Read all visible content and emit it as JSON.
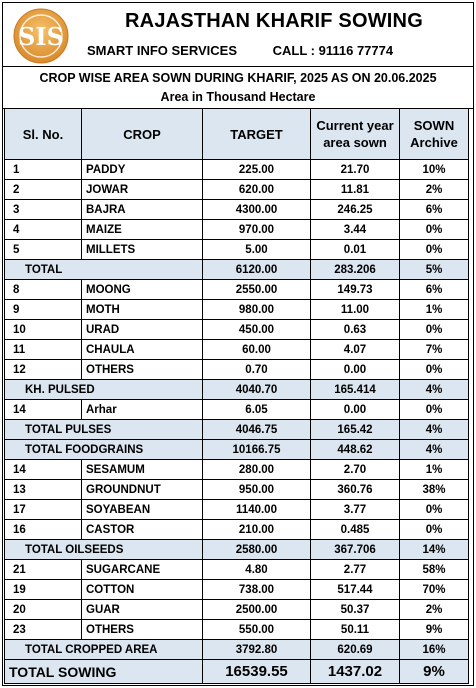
{
  "header": {
    "logo_text": "SIS",
    "title": "RAJASTHAN KHARIF SOWING",
    "company": "SMART INFO SERVICES",
    "call": "CALL : 91116 77774"
  },
  "report": {
    "heading": "CROP WISE AREA SOWN DURING KHARIF, 2025 AS ON 20.06.2025",
    "unit": "Area in Thousand Hectare"
  },
  "table": {
    "columns": [
      "Sl. No.",
      "CROP",
      "TARGET",
      "Current year area sown",
      "SOWN Archive"
    ],
    "rows": [
      {
        "type": "crop",
        "sl": "1",
        "crop": "PADDY",
        "target": "225.00",
        "current": "21.70",
        "archive": "10%"
      },
      {
        "type": "crop",
        "sl": "2",
        "crop": "JOWAR",
        "target": "620.00",
        "current": "11.81",
        "archive": "2%"
      },
      {
        "type": "crop",
        "sl": "3",
        "crop": "BAJRA",
        "target": "4300.00",
        "current": "246.25",
        "archive": "6%"
      },
      {
        "type": "crop",
        "sl": "4",
        "crop": "MAIZE",
        "target": "970.00",
        "current": "3.44",
        "archive": "0%"
      },
      {
        "type": "crop",
        "sl": "5",
        "crop": "MILLETS",
        "target": "5.00",
        "current": "0.01",
        "archive": "0%"
      },
      {
        "type": "total",
        "label": "TOTAL",
        "target": "6120.00",
        "current": "283.206",
        "archive": "5%"
      },
      {
        "type": "crop",
        "sl": "8",
        "crop": "MOONG",
        "target": "2550.00",
        "current": "149.73",
        "archive": "6%"
      },
      {
        "type": "crop",
        "sl": "9",
        "crop": "MOTH",
        "target": "980.00",
        "current": "11.00",
        "archive": "1%"
      },
      {
        "type": "crop",
        "sl": "10",
        "crop": "URAD",
        "target": "450.00",
        "current": "0.63",
        "archive": "0%"
      },
      {
        "type": "crop",
        "sl": "11",
        "crop": "CHAULA",
        "target": "60.00",
        "current": "4.07",
        "archive": "7%"
      },
      {
        "type": "crop",
        "sl": "12",
        "crop": "OTHERS",
        "target": "0.70",
        "current": "0.00",
        "archive": "0%"
      },
      {
        "type": "total",
        "label": "KH. PULSED",
        "target": "4040.70",
        "current": "165.414",
        "archive": "4%"
      },
      {
        "type": "crop",
        "sl": "14",
        "crop": "Arhar",
        "target": "6.05",
        "current": "0.00",
        "archive": "0%"
      },
      {
        "type": "total",
        "label": "TOTAL PULSES",
        "target": "4046.75",
        "current": "165.42",
        "archive": "4%"
      },
      {
        "type": "total",
        "label": "TOTAL  FOODGRAINS",
        "target": "10166.75",
        "current": "448.62",
        "archive": "4%"
      },
      {
        "type": "crop",
        "sl": "14",
        "crop": "SESAMUM",
        "target": "280.00",
        "current": "2.70",
        "archive": "1%"
      },
      {
        "type": "crop",
        "sl": "13",
        "crop": "GROUNDNUT",
        "target": "950.00",
        "current": "360.76",
        "archive": "38%"
      },
      {
        "type": "crop",
        "sl": "17",
        "crop": "SOYABEAN",
        "target": "1140.00",
        "current": "3.77",
        "archive": "0%"
      },
      {
        "type": "crop",
        "sl": "16",
        "crop": "CASTOR",
        "target": "210.00",
        "current": "0.485",
        "archive": "0%"
      },
      {
        "type": "total",
        "label": "TOTAL OILSEEDS",
        "target": "2580.00",
        "current": "367.706",
        "archive": "14%"
      },
      {
        "type": "crop",
        "sl": "21",
        "crop": "SUGARCANE",
        "target": "4.80",
        "current": "2.77",
        "archive": "58%"
      },
      {
        "type": "crop",
        "sl": "19",
        "crop": "COTTON",
        "target": "738.00",
        "current": "517.44",
        "archive": "70%"
      },
      {
        "type": "crop",
        "sl": "20",
        "crop": "GUAR",
        "target": "2500.00",
        "current": "50.37",
        "archive": "2%"
      },
      {
        "type": "crop",
        "sl": "23",
        "crop": "OTHERS",
        "target": "550.00",
        "current": "50.11",
        "archive": "9%"
      },
      {
        "type": "total",
        "label": "TOTAL CROPPED AREA",
        "target": "3792.80",
        "current": "620.69",
        "archive": "16%"
      },
      {
        "type": "grand",
        "label": "TOTAL SOWING",
        "target": "16539.55",
        "current": "1437.02",
        "archive": "9%"
      }
    ]
  }
}
